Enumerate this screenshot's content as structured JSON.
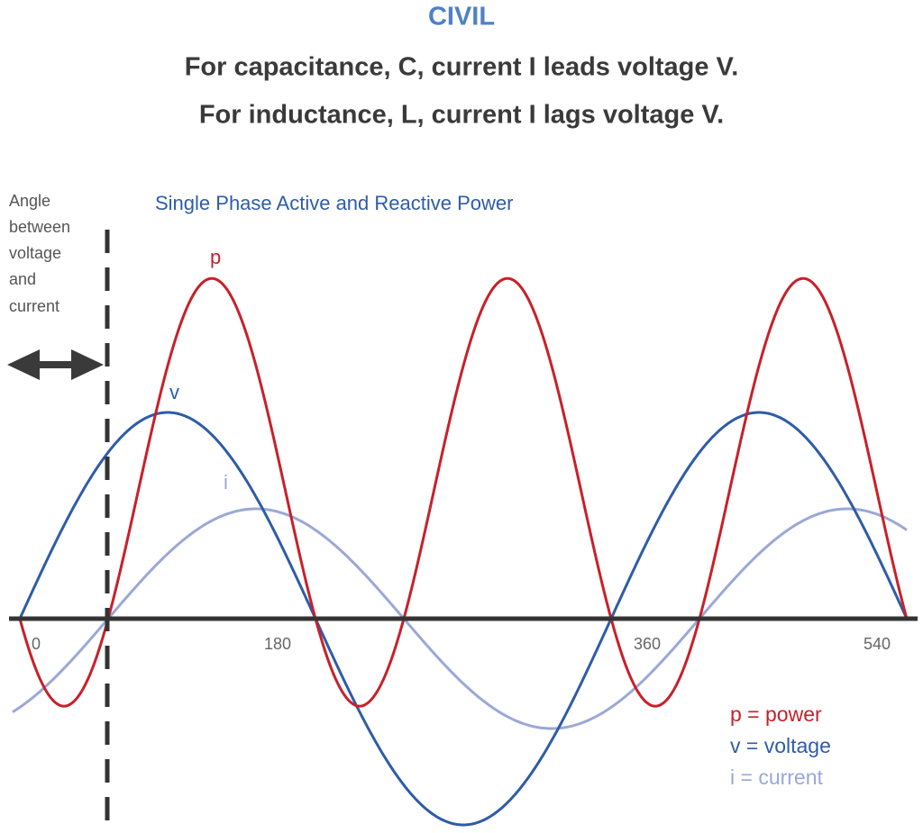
{
  "header": {
    "title": "CIVIL",
    "lines": [
      "For capacitance, C, current I leads voltage V.",
      "For inductance, L, current I lags voltage V."
    ]
  },
  "diagram": {
    "title": "Single Phase Active and Reactive Power",
    "angle_note": [
      "Angle",
      "between",
      "voltage",
      "and",
      "current"
    ],
    "curve_labels": {
      "p": "p",
      "v": "v",
      "i": "i"
    },
    "axis_labels": [
      "0",
      "180",
      "360",
      "540"
    ],
    "legend": [
      "p = power",
      "v = voltage",
      "i  = current"
    ]
  }
}
